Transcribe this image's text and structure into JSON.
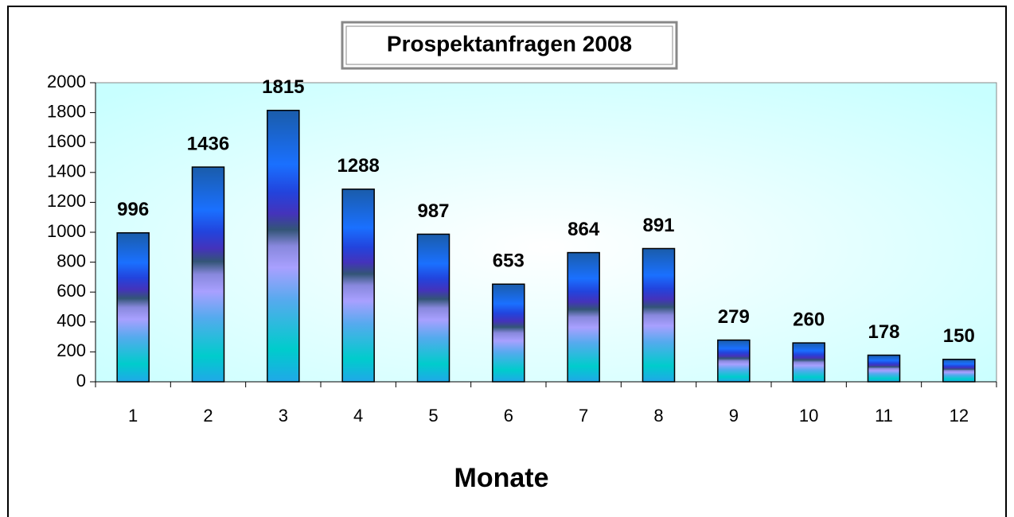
{
  "chart_data": {
    "type": "bar",
    "title": "Prospektanfragen 2008",
    "x_label": "Monate",
    "categories": [
      "1",
      "2",
      "3",
      "4",
      "5",
      "6",
      "7",
      "8",
      "9",
      "10",
      "11",
      "12"
    ],
    "values": [
      996,
      1436,
      1815,
      1288,
      987,
      653,
      864,
      891,
      279,
      260,
      178,
      150
    ],
    "ylim": [
      0,
      2000
    ],
    "yticks": [
      0,
      200,
      400,
      600,
      800,
      1000,
      1200,
      1400,
      1600,
      1800,
      2000
    ],
    "grid": false,
    "color": "#1a6cff"
  }
}
